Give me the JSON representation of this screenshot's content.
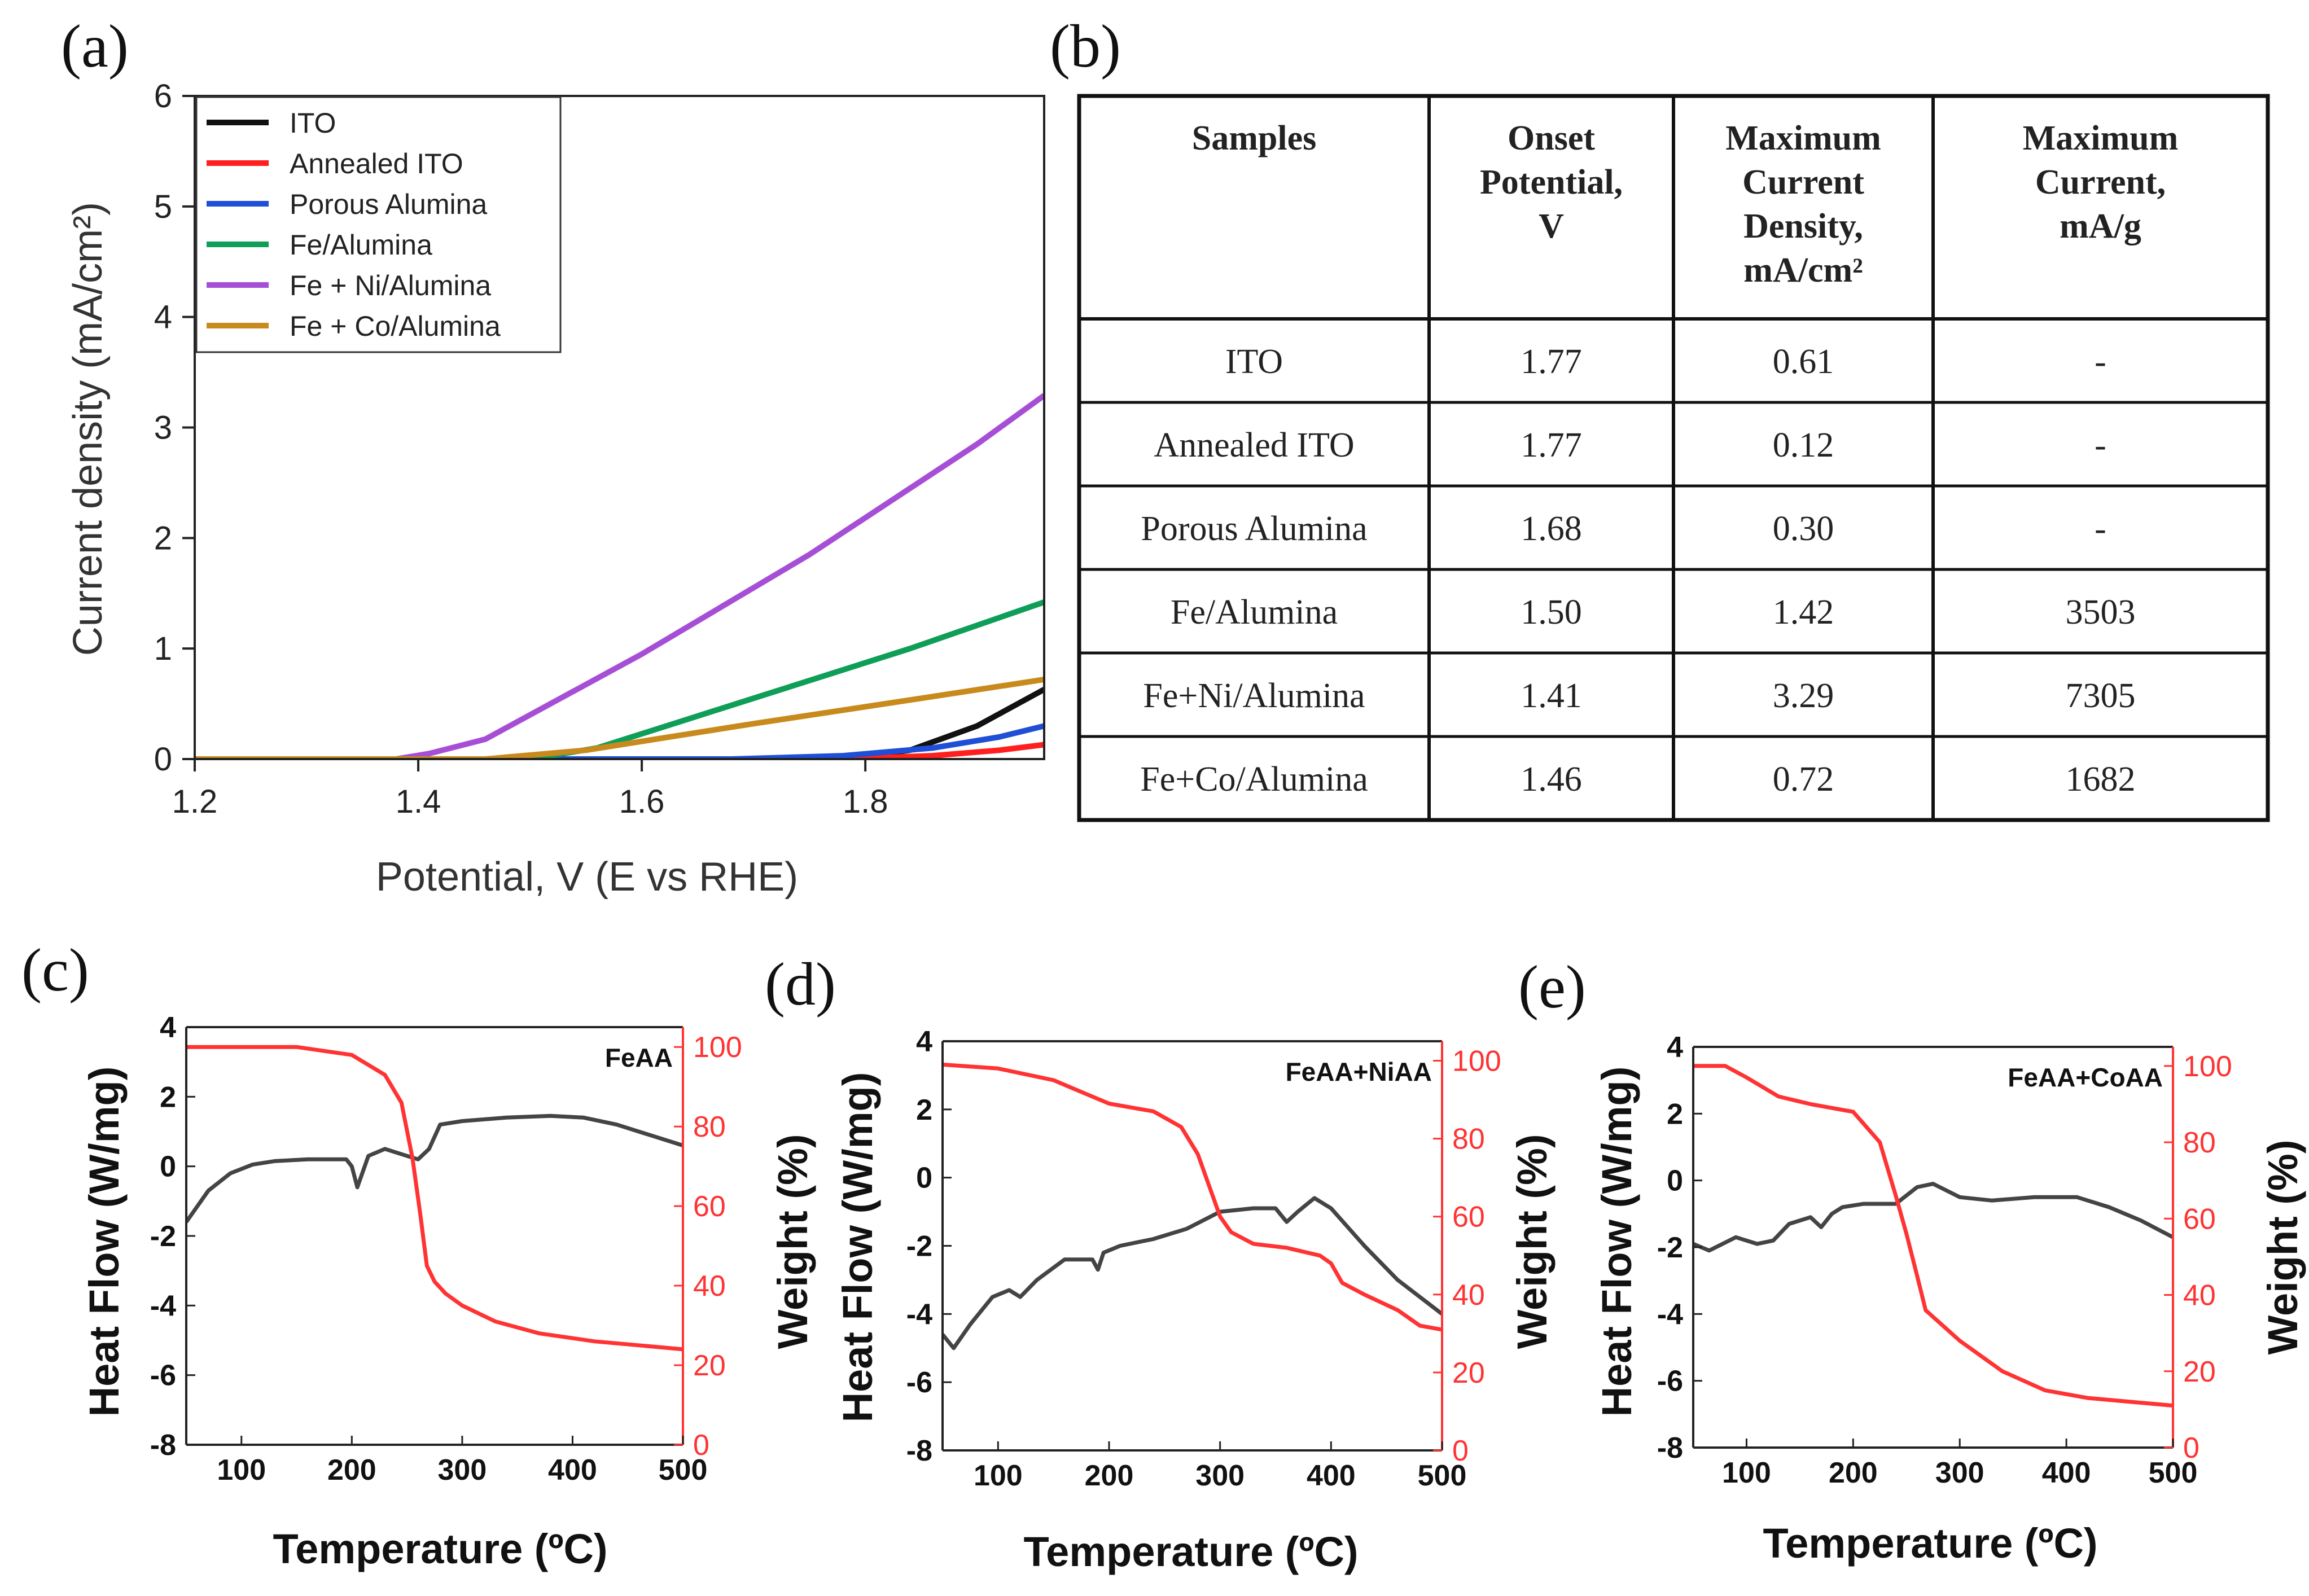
{
  "figure": {
    "panel_labels": {
      "a": "(a)",
      "b": "(b)",
      "c": "(c)",
      "d": "(d)",
      "e": "(e)"
    }
  },
  "chart_data": [
    {
      "id": "a",
      "type": "line",
      "title": "",
      "xlabel": "Potential, V (E vs RHE)",
      "ylabel": "Current density (mA/cm²)",
      "xlim": [
        1.2,
        1.96
      ],
      "ylim": [
        0,
        6
      ],
      "xticks": [
        1.2,
        1.4,
        1.6,
        1.8
      ],
      "xtick_labels": [
        "1.2",
        "1.4",
        "1.6",
        "1.8"
      ],
      "yticks": [
        0,
        1,
        2,
        3,
        4,
        5,
        6
      ],
      "ytick_labels": [
        "0",
        "1",
        "2",
        "3",
        "4",
        "5",
        "6"
      ],
      "legend_position": "top-left",
      "series": [
        {
          "name": "ITO",
          "color": "#111111",
          "x": [
            1.2,
            1.78,
            1.84,
            1.9,
            1.96
          ],
          "y": [
            0.0,
            0.0,
            0.08,
            0.3,
            0.63
          ]
        },
        {
          "name": "Annealed ITO",
          "color": "#ff1f1f",
          "x": [
            1.2,
            1.78,
            1.86,
            1.92,
            1.96
          ],
          "y": [
            0.0,
            0.0,
            0.03,
            0.08,
            0.13
          ]
        },
        {
          "name": "Porous Alumina",
          "color": "#1f4fd6",
          "x": [
            1.2,
            1.68,
            1.78,
            1.86,
            1.92,
            1.96
          ],
          "y": [
            0.0,
            0.0,
            0.03,
            0.1,
            0.2,
            0.3
          ]
        },
        {
          "name": "Fe/Alumina",
          "color": "#0e9e58",
          "x": [
            1.2,
            1.5,
            1.56,
            1.7,
            1.84,
            1.96
          ],
          "y": [
            0.0,
            0.0,
            0.1,
            0.55,
            1.0,
            1.42
          ]
        },
        {
          "name": "Fe + Ni/Alumina",
          "color": "#a64fd6",
          "x": [
            1.2,
            1.33,
            1.38,
            1.41,
            1.46,
            1.6,
            1.75,
            1.9,
            1.96
          ],
          "y": [
            0.0,
            -0.05,
            0.0,
            0.05,
            0.18,
            0.95,
            1.85,
            2.85,
            3.29
          ]
        },
        {
          "name": "Fe + Co/Alumina",
          "color": "#c88a1c",
          "x": [
            1.2,
            1.46,
            1.55,
            1.7,
            1.85,
            1.96
          ],
          "y": [
            0.0,
            0.0,
            0.08,
            0.32,
            0.55,
            0.72
          ]
        }
      ]
    },
    {
      "id": "b",
      "type": "table",
      "columns": [
        "Samples",
        "Onset Potential, V",
        "Maximum Current Density, mA/cm²",
        "Maximum Current, mA/g"
      ],
      "header_lines": [
        [
          "Samples"
        ],
        [
          "Onset",
          "Potential,",
          "V"
        ],
        [
          "Maximum",
          "Current",
          "Density,",
          "mA/cm²"
        ],
        [
          "Maximum",
          "Current,",
          "mA/g"
        ]
      ],
      "rows": [
        [
          "ITO",
          "1.77",
          "0.61",
          "-"
        ],
        [
          "Annealed ITO",
          "1.77",
          "0.12",
          "-"
        ],
        [
          "Porous Alumina",
          "1.68",
          "0.30",
          "-"
        ],
        [
          "Fe/Alumina",
          "1.50",
          "1.42",
          "3503"
        ],
        [
          "Fe+Ni/Alumina",
          "1.41",
          "3.29",
          "7305"
        ],
        [
          "Fe+Co/Alumina",
          "1.46",
          "0.72",
          "1682"
        ]
      ]
    },
    {
      "id": "c",
      "type": "line",
      "sample_label": "FeAA",
      "xlabel": "Temperature (ºC)",
      "ylabel_left": "Heat Flow (W/mg)",
      "ylabel_right": "Weight (%)",
      "xlim": [
        50,
        500
      ],
      "ylim_left": [
        -8,
        4
      ],
      "ylim_right": [
        0,
        105
      ],
      "xticks": [
        100,
        200,
        300,
        400,
        500
      ],
      "xtick_labels": [
        "100",
        "200",
        "300",
        "400",
        "500"
      ],
      "yticks_left": [
        -8,
        -6,
        -4,
        -2,
        0,
        2,
        4
      ],
      "ytick_labels_left": [
        "-8",
        "-6",
        "-4",
        "-2",
        "0",
        "2",
        "4"
      ],
      "yticks_right": [
        0,
        20,
        40,
        60,
        80,
        100
      ],
      "ytick_labels_right": [
        "0",
        "20",
        "40",
        "60",
        "80",
        "100"
      ],
      "series": [
        {
          "name": "Heat Flow",
          "axis": "left",
          "color": "#444444",
          "x": [
            50,
            70,
            90,
            110,
            130,
            160,
            195,
            200,
            205,
            215,
            230,
            250,
            260,
            270,
            280,
            300,
            340,
            380,
            410,
            440,
            470,
            500
          ],
          "y": [
            -1.6,
            -0.7,
            -0.2,
            0.05,
            0.15,
            0.2,
            0.2,
            0.0,
            -0.6,
            0.3,
            0.5,
            0.3,
            0.2,
            0.5,
            1.2,
            1.3,
            1.4,
            1.45,
            1.4,
            1.2,
            0.9,
            0.6
          ]
        },
        {
          "name": "Weight",
          "axis": "right",
          "color": "#ff3333",
          "x": [
            50,
            100,
            150,
            200,
            230,
            245,
            255,
            262,
            268,
            275,
            285,
            300,
            330,
            370,
            420,
            460,
            500
          ],
          "y": [
            100,
            100,
            100,
            98,
            93,
            86,
            72,
            58,
            45,
            41,
            38,
            35,
            31,
            28,
            26,
            25,
            24
          ]
        }
      ]
    },
    {
      "id": "d",
      "type": "line",
      "sample_label": "FeAA+NiAA",
      "xlabel": "Temperature (ºC)",
      "ylabel_left": "Heat Flow (W/mg)",
      "ylabel_right": "Weight (%)",
      "xlim": [
        50,
        500
      ],
      "ylim_left": [
        -8,
        4
      ],
      "ylim_right": [
        0,
        105
      ],
      "xticks": [
        100,
        200,
        300,
        400,
        500
      ],
      "xtick_labels": [
        "100",
        "200",
        "300",
        "400",
        "500"
      ],
      "yticks_left": [
        -8,
        -6,
        -4,
        -2,
        0,
        2,
        4
      ],
      "ytick_labels_left": [
        "-8",
        "-6",
        "-4",
        "-2",
        "0",
        "2",
        "4"
      ],
      "yticks_right": [
        0,
        20,
        40,
        60,
        80,
        100
      ],
      "ytick_labels_right": [
        "0",
        "20",
        "40",
        "60",
        "80",
        "100"
      ],
      "series": [
        {
          "name": "Heat Flow",
          "axis": "left",
          "color": "#444444",
          "x": [
            50,
            60,
            75,
            95,
            110,
            120,
            135,
            160,
            185,
            190,
            195,
            210,
            240,
            270,
            300,
            330,
            350,
            360,
            370,
            385,
            400,
            430,
            460,
            500
          ],
          "y": [
            -4.6,
            -5.0,
            -4.3,
            -3.5,
            -3.3,
            -3.5,
            -3.0,
            -2.4,
            -2.4,
            -2.7,
            -2.2,
            -2.0,
            -1.8,
            -1.5,
            -1.0,
            -0.9,
            -0.9,
            -1.3,
            -1.0,
            -0.6,
            -0.9,
            -2.0,
            -3.0,
            -4.0
          ]
        },
        {
          "name": "Weight",
          "axis": "right",
          "color": "#ff3333",
          "x": [
            50,
            100,
            150,
            175,
            200,
            240,
            265,
            280,
            290,
            300,
            310,
            330,
            360,
            390,
            400,
            410,
            430,
            460,
            480,
            500
          ],
          "y": [
            99,
            98,
            95,
            92,
            89,
            87,
            83,
            76,
            68,
            60,
            56,
            53,
            52,
            50,
            48,
            43,
            40,
            36,
            32,
            31
          ]
        }
      ]
    },
    {
      "id": "e",
      "type": "line",
      "sample_label": "FeAA+CoAA",
      "xlabel": "Temperature (ºC)",
      "ylabel_left": "Heat Flow (W/mg)",
      "ylabel_right": "Weight (%)",
      "xlim": [
        50,
        500
      ],
      "ylim_left": [
        -8,
        4
      ],
      "ylim_right": [
        0,
        105
      ],
      "xticks": [
        100,
        200,
        300,
        400,
        500
      ],
      "xtick_labels": [
        "100",
        "200",
        "300",
        "400",
        "500"
      ],
      "yticks_left": [
        -8,
        -6,
        -4,
        -2,
        0,
        2,
        4
      ],
      "ytick_labels_left": [
        "-8",
        "-6",
        "-4",
        "-2",
        "0",
        "2",
        "4"
      ],
      "yticks_right": [
        0,
        20,
        40,
        60,
        80,
        100
      ],
      "ytick_labels_right": [
        "0",
        "20",
        "40",
        "60",
        "80",
        "100"
      ],
      "series": [
        {
          "name": "Heat Flow",
          "axis": "left",
          "color": "#444444",
          "x": [
            50,
            65,
            90,
            110,
            125,
            140,
            160,
            170,
            180,
            190,
            210,
            240,
            260,
            275,
            300,
            330,
            370,
            410,
            440,
            470,
            500
          ],
          "y": [
            -1.9,
            -2.1,
            -1.7,
            -1.9,
            -1.8,
            -1.3,
            -1.1,
            -1.4,
            -1.0,
            -0.8,
            -0.7,
            -0.7,
            -0.2,
            -0.1,
            -0.5,
            -0.6,
            -0.5,
            -0.5,
            -0.8,
            -1.2,
            -1.7
          ]
        },
        {
          "name": "Weight",
          "axis": "right",
          "color": "#ff3333",
          "x": [
            50,
            80,
            100,
            130,
            160,
            200,
            225,
            240,
            250,
            260,
            268,
            280,
            300,
            340,
            380,
            420,
            460,
            500
          ],
          "y": [
            100,
            100,
            97,
            92,
            90,
            88,
            80,
            66,
            56,
            45,
            36,
            33,
            28,
            20,
            15,
            13,
            12,
            11
          ]
        }
      ]
    }
  ]
}
